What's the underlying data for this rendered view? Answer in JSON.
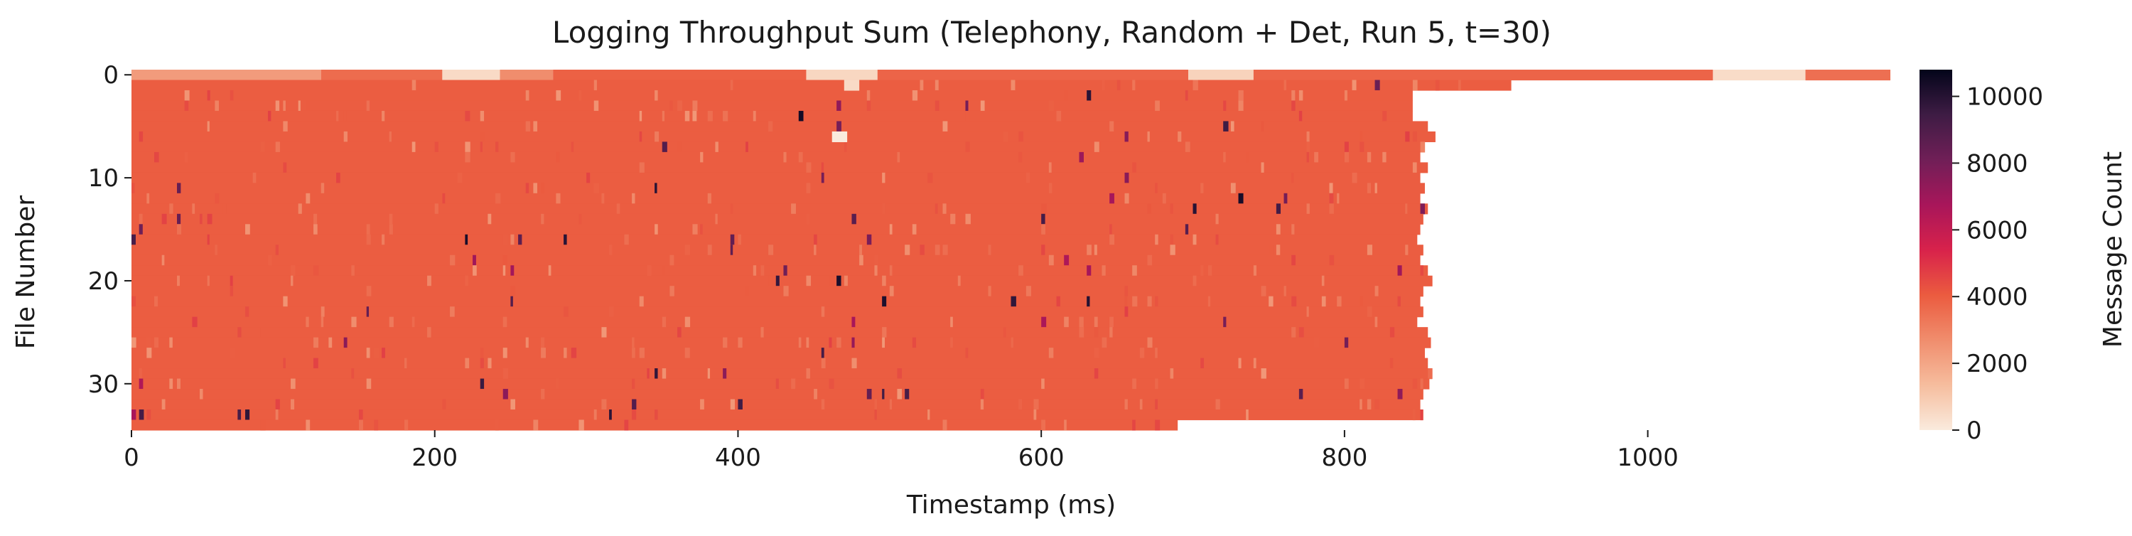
{
  "chart_data": {
    "type": "heatmap",
    "title": "Logging Throughput Sum (Telephony, Random + Det, Run 5, t=30)",
    "xlabel": "Timestamp (ms)",
    "ylabel": "File Number",
    "colorbar_label": "Message Count",
    "x_range": [
      0,
      1160
    ],
    "y_range": [
      0,
      35
    ],
    "x_ticks": [
      "0",
      "200",
      "400",
      "600",
      "800",
      "1000"
    ],
    "x_tick_values": [
      0,
      200,
      400,
      600,
      800,
      1000
    ],
    "y_ticks": [
      "0",
      "10",
      "20",
      "30"
    ],
    "y_tick_values": [
      0,
      10,
      20,
      30
    ],
    "colorbar_ticks": [
      "0",
      "2000",
      "4000",
      "6000",
      "8000",
      "10000"
    ],
    "colorbar_tick_values": [
      0,
      2000,
      4000,
      6000,
      8000,
      10000
    ],
    "color_range": [
      0,
      10800
    ],
    "colormap": "rocket_r",
    "colormap_stops": [
      "#faebdd",
      "#f6bd9e",
      "#f08d6d",
      "#eb5b3f",
      "#d8224b",
      "#a8165a",
      "#701f57",
      "#3e1c44",
      "#03051a"
    ],
    "typical_value": 4000,
    "rows": [
      {
        "file": 0,
        "end_ms": 1160,
        "note": "file 0 spans full range with low-count segments"
      },
      {
        "file": 1,
        "end_ms": 910
      },
      {
        "file": 2,
        "end_ms": 845
      },
      {
        "file": 3,
        "end_ms": 845
      },
      {
        "file": 4,
        "end_ms": 845
      },
      {
        "file": 5,
        "end_ms": 855
      },
      {
        "file": 6,
        "end_ms": 860
      },
      {
        "file": 7,
        "end_ms": 852
      },
      {
        "file": 8,
        "end_ms": 850
      },
      {
        "file": 9,
        "end_ms": 855
      },
      {
        "file": 10,
        "end_ms": 850
      },
      {
        "file": 11,
        "end_ms": 853
      },
      {
        "file": 12,
        "end_ms": 850
      },
      {
        "file": 13,
        "end_ms": 855
      },
      {
        "file": 14,
        "end_ms": 852
      },
      {
        "file": 15,
        "end_ms": 850
      },
      {
        "file": 16,
        "end_ms": 848
      },
      {
        "file": 17,
        "end_ms": 852
      },
      {
        "file": 18,
        "end_ms": 850
      },
      {
        "file": 19,
        "end_ms": 855
      },
      {
        "file": 20,
        "end_ms": 858
      },
      {
        "file": 21,
        "end_ms": 852
      },
      {
        "file": 22,
        "end_ms": 850
      },
      {
        "file": 23,
        "end_ms": 852
      },
      {
        "file": 24,
        "end_ms": 848
      },
      {
        "file": 25,
        "end_ms": 855
      },
      {
        "file": 26,
        "end_ms": 857
      },
      {
        "file": 27,
        "end_ms": 853
      },
      {
        "file": 28,
        "end_ms": 855
      },
      {
        "file": 29,
        "end_ms": 858
      },
      {
        "file": 30,
        "end_ms": 856
      },
      {
        "file": 31,
        "end_ms": 852
      },
      {
        "file": 32,
        "end_ms": 850
      },
      {
        "file": 33,
        "end_ms": 852
      },
      {
        "file": 34,
        "end_ms": 690
      }
    ],
    "file0_segments": [
      {
        "start": 0,
        "end": 125,
        "value": 2300
      },
      {
        "start": 125,
        "end": 205,
        "value": 3600
      },
      {
        "start": 205,
        "end": 243,
        "value": 500
      },
      {
        "start": 243,
        "end": 278,
        "value": 2700
      },
      {
        "start": 278,
        "end": 445,
        "value": 3900
      },
      {
        "start": 445,
        "end": 492,
        "value": 600
      },
      {
        "start": 492,
        "end": 697,
        "value": 3800
      },
      {
        "start": 697,
        "end": 740,
        "value": 700
      },
      {
        "start": 740,
        "end": 1043,
        "value": 3800
      },
      {
        "start": 1043,
        "end": 1104,
        "value": 450
      },
      {
        "start": 1104,
        "end": 1160,
        "value": 3500
      }
    ],
    "sparse_cells": [
      {
        "x": 470,
        "y": 1,
        "value": 500
      },
      {
        "x": 462,
        "y": 6,
        "value": 0
      }
    ]
  }
}
